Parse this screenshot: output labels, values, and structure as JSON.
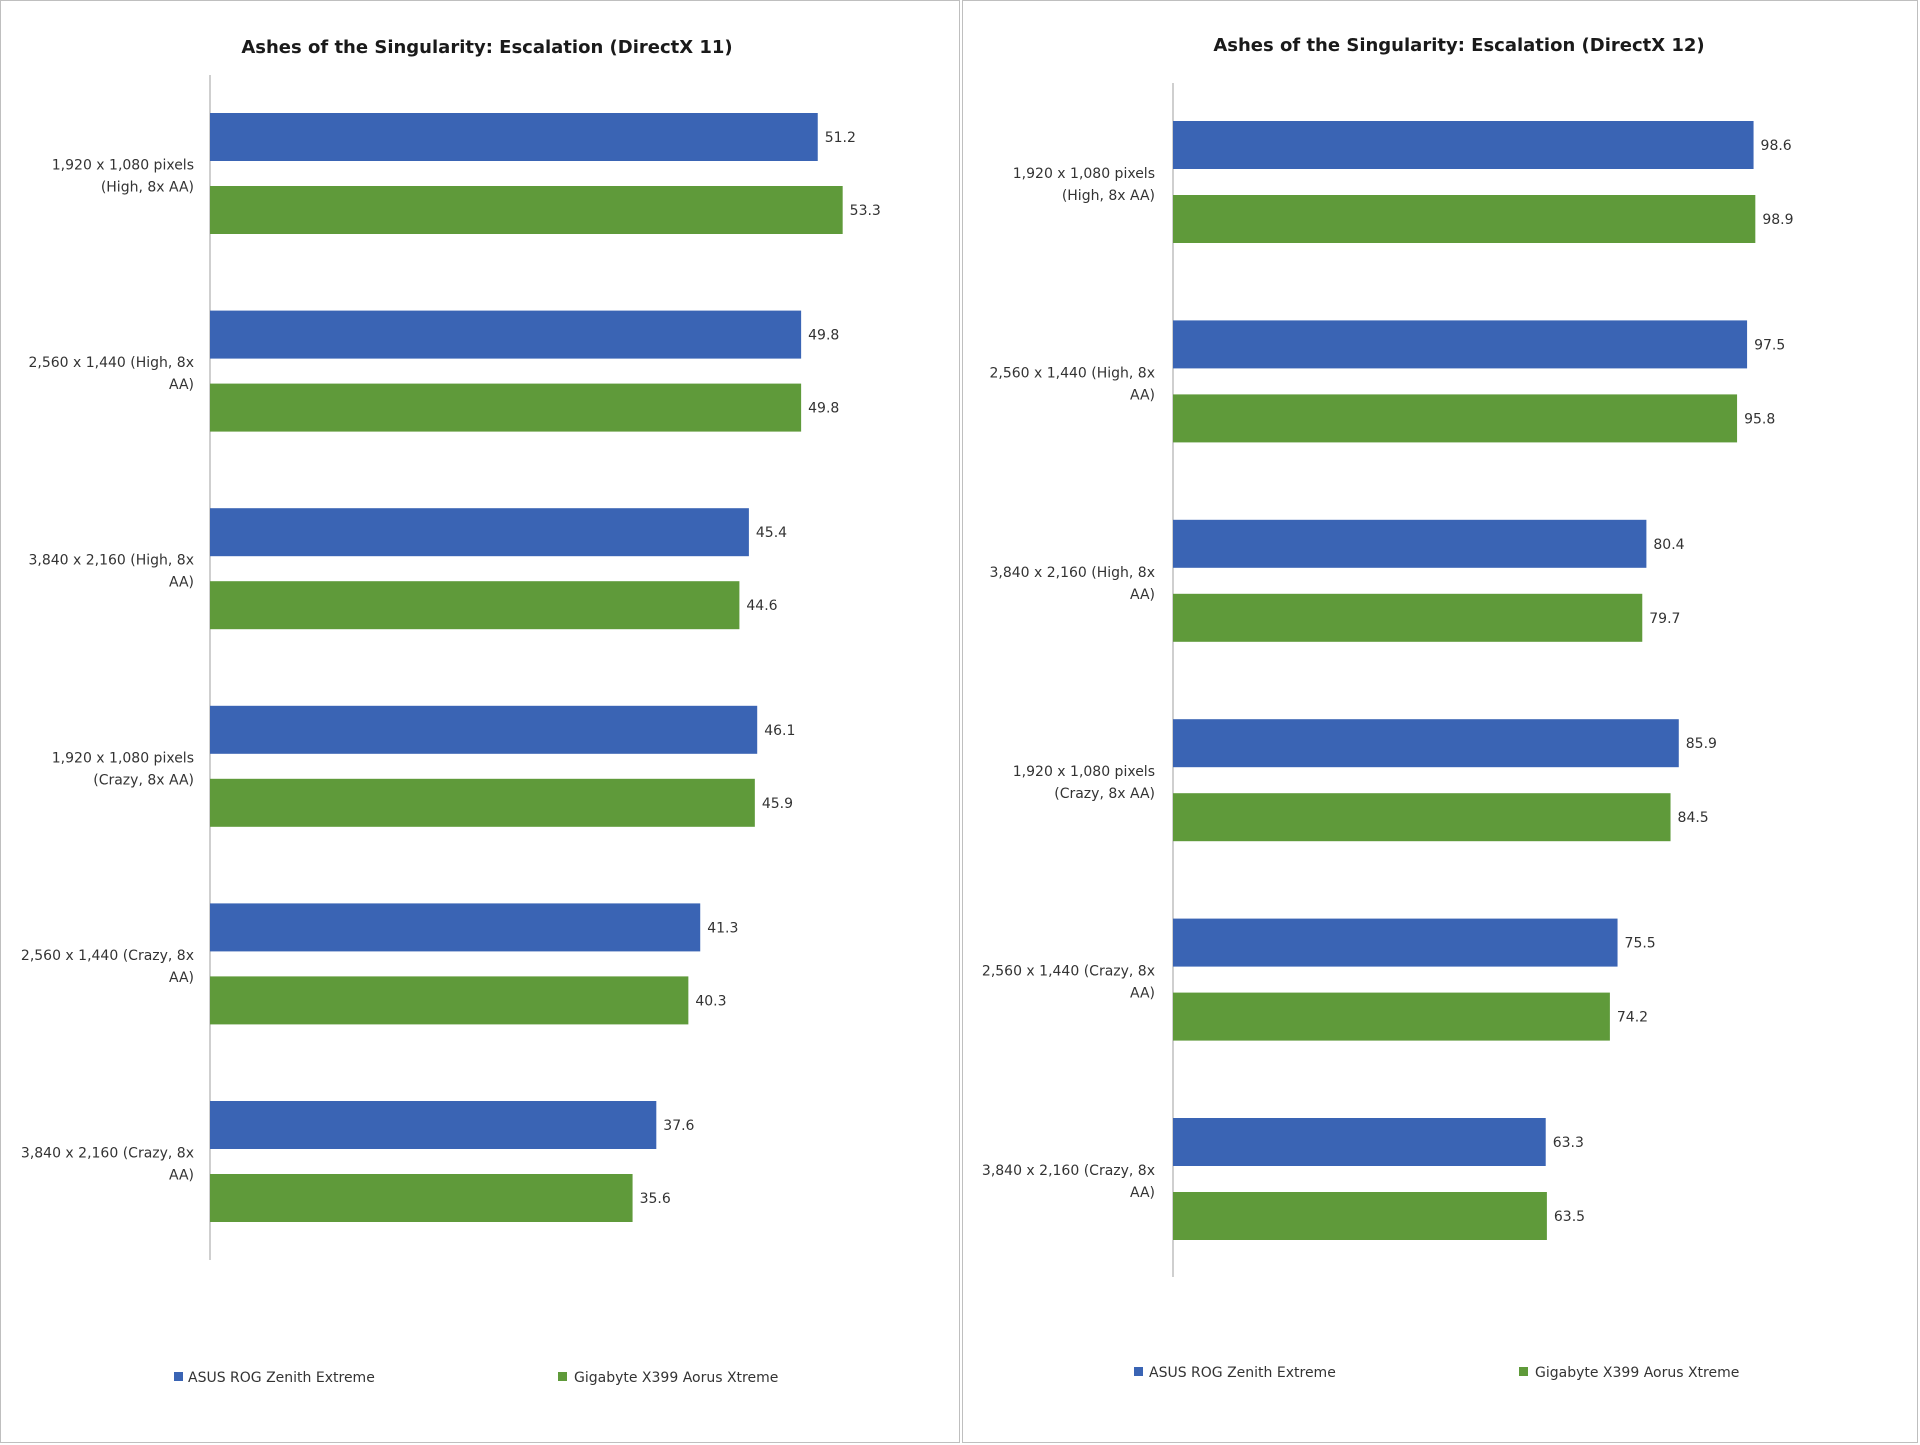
{
  "chart_data": [
    {
      "type": "bar",
      "orientation": "horizontal",
      "title": "Ashes of the Singularity: Escalation (DirectX 11)",
      "xlabel": "",
      "ylabel": "",
      "xlim": [
        0,
        62.5
      ],
      "grid": false,
      "legend_position": "bottom",
      "categories": [
        [
          "1,920 x 1,080 pixels",
          "(High, 8x AA)"
        ],
        [
          "2,560 x 1,440 (High, 8x",
          "AA)"
        ],
        [
          "3,840 x 2,160 (High, 8x",
          "AA)"
        ],
        [
          "1,920 x 1,080 pixels",
          "(Crazy, 8x AA)"
        ],
        [
          "2,560 x 1,440 (Crazy, 8x",
          "AA)"
        ],
        [
          "3,840 x 2,160 (Crazy, 8x",
          "AA)"
        ]
      ],
      "series": [
        {
          "name": "ASUS ROG Zenith Extreme",
          "color": "#3a64b4",
          "values": [
            51.2,
            49.8,
            45.4,
            46.1,
            41.3,
            37.6
          ],
          "labels": [
            "51.2",
            "49.8",
            "45.4",
            "46.1",
            "41.3",
            "37.6"
          ]
        },
        {
          "name": "Gigabyte X399 Aorus Xtreme",
          "color": "#5f9a3a",
          "values": [
            53.3,
            49.8,
            44.6,
            45.9,
            40.3,
            35.6
          ],
          "labels": [
            "53.3",
            "49.8",
            "44.6",
            "45.9",
            "40.3",
            "35.6"
          ]
        }
      ]
    },
    {
      "type": "bar",
      "orientation": "horizontal",
      "title": "Ashes of the Singularity: Escalation (DirectX 12)",
      "xlabel": "",
      "ylabel": "",
      "xlim": [
        0,
        115
      ],
      "grid": false,
      "legend_position": "bottom",
      "categories": [
        [
          "1,920 x 1,080 pixels",
          "(High, 8x AA)"
        ],
        [
          "2,560 x 1,440 (High, 8x",
          "AA)"
        ],
        [
          "3,840 x 2,160 (High, 8x",
          "AA)"
        ],
        [
          "1,920 x 1,080 pixels",
          "(Crazy, 8x AA)"
        ],
        [
          "2,560 x 1,440 (Crazy, 8x",
          "AA)"
        ],
        [
          "3,840 x 2,160 (Crazy, 8x",
          "AA)"
        ]
      ],
      "series": [
        {
          "name": "ASUS ROG Zenith Extreme",
          "color": "#3a64b4",
          "values": [
            98.6,
            97.5,
            80.4,
            85.9,
            75.5,
            63.3
          ],
          "labels": [
            "98.6",
            "97.5",
            "80.4",
            "85.9",
            "75.5",
            "63.3"
          ]
        },
        {
          "name": "Gigabyte X399 Aorus Xtreme",
          "color": "#5f9a3a",
          "values": [
            98.9,
            95.8,
            79.7,
            84.5,
            74.2,
            63.5
          ],
          "labels": [
            "98.9",
            "95.8",
            "79.7",
            "84.5",
            "74.2",
            "63.5"
          ]
        }
      ]
    }
  ]
}
